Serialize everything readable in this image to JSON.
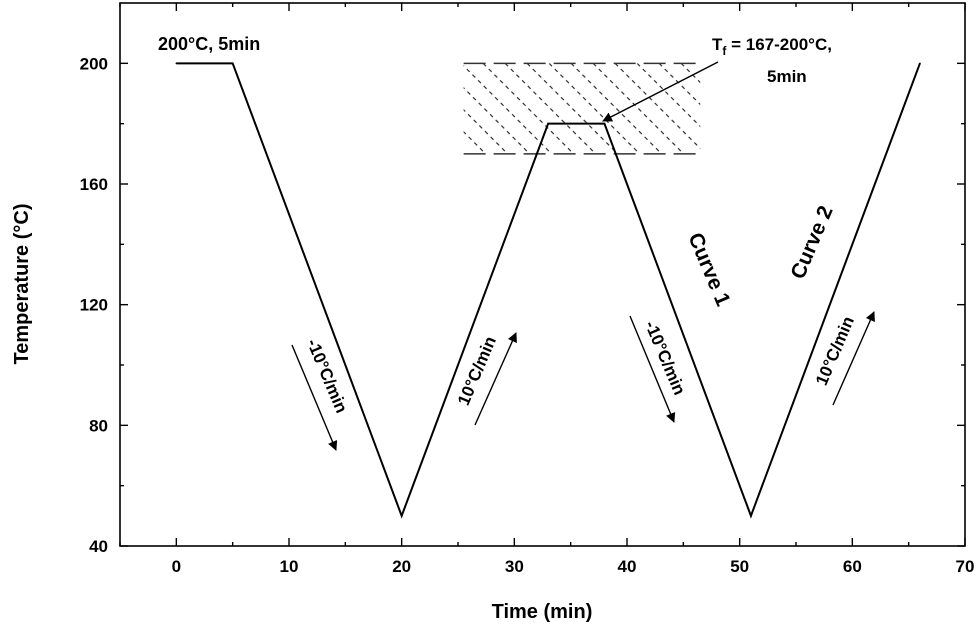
{
  "chart_data": {
    "type": "line",
    "xlabel": "Time (min)",
    "ylabel": "Temperature (°C)",
    "xlim": [
      -5,
      70
    ],
    "ylim": [
      40,
      220
    ],
    "xticks": [
      0,
      10,
      20,
      30,
      40,
      50,
      60,
      70
    ],
    "yticks": [
      40,
      80,
      120,
      160,
      200
    ],
    "series": [
      {
        "x": [
          0,
          5,
          20,
          33,
          38,
          51,
          66
        ],
        "y": [
          200,
          200,
          50,
          180,
          180,
          50,
          200
        ]
      }
    ],
    "region": {
      "x": [
        25.5,
        46.5
      ],
      "y": [
        170,
        200
      ]
    },
    "annotations": {
      "hold": "200°C, 5min",
      "tf_label_T": "T",
      "tf_label_sub": "f",
      "tf_label_rest": " = 167-200°C,",
      "tf_label_line2": "5min",
      "rate1": "-10°C/min",
      "rate2": "10°C/min",
      "rate3": "-10°C/min",
      "rate4": "10°C/min",
      "curve1": "Curve 1",
      "curve2": "Curve 2"
    }
  }
}
